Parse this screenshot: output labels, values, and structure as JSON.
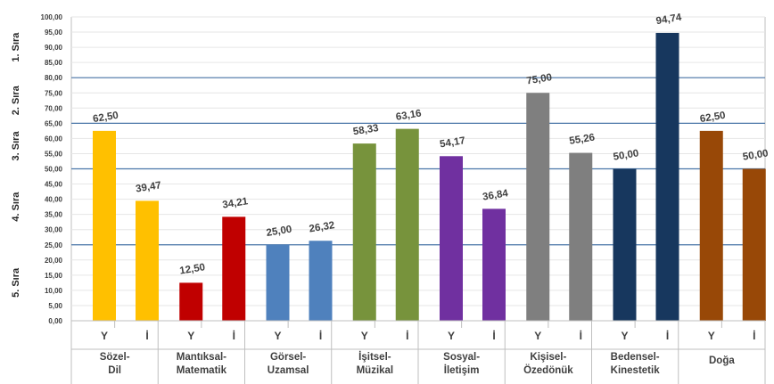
{
  "chart_data": {
    "type": "bar",
    "groups": [
      {
        "label": "Sözel-\nDil",
        "color": "#ffc000"
      },
      {
        "label": "Mantıksal-\nMatematik",
        "color": "#c00000"
      },
      {
        "label": "Görsel-\nUzamsal",
        "color": "#4f81bd"
      },
      {
        "label": "İşitsel-\nMüzikal",
        "color": "#77933c"
      },
      {
        "label": "Sosyal-\nİletişim",
        "color": "#7030a0"
      },
      {
        "label": "Kişisel-\nÖzedönük",
        "color": "#7f7f7f"
      },
      {
        "label": "Bedensel-\nKinestetik",
        "color": "#17375e"
      },
      {
        "label": "Doğa",
        "color": "#984807"
      }
    ],
    "sub_categories": [
      "Y",
      "İ"
    ],
    "values": [
      [
        62.5,
        39.47
      ],
      [
        12.5,
        34.21
      ],
      [
        25.0,
        26.32
      ],
      [
        58.33,
        63.16
      ],
      [
        54.17,
        36.84
      ],
      [
        75.0,
        55.26
      ],
      [
        50.0,
        94.74
      ],
      [
        62.5,
        50.0
      ]
    ],
    "value_labels": [
      [
        "62,50",
        "39,47"
      ],
      [
        "12,50",
        "34,21"
      ],
      [
        "25,00",
        "26,32"
      ],
      [
        "58,33",
        "63,16"
      ],
      [
        "54,17",
        "36,84"
      ],
      [
        "75,00",
        "55,26"
      ],
      [
        "50,00",
        "94,74"
      ],
      [
        "62,50",
        "50,00"
      ]
    ],
    "ylim": [
      0,
      100
    ],
    "yticks": [
      0,
      5,
      10,
      15,
      20,
      25,
      30,
      35,
      40,
      45,
      50,
      55,
      60,
      65,
      70,
      75,
      80,
      85,
      90,
      95,
      100
    ],
    "ytick_labels": [
      "0,00",
      "5,00",
      "10,00",
      "15,00",
      "20,00",
      "25,00",
      "30,00",
      "35,00",
      "40,00",
      "45,00",
      "50,00",
      "55,00",
      "60,00",
      "65,00",
      "70,00",
      "75,00",
      "80,00",
      "85,00",
      "90,00",
      "95,00",
      "100,00"
    ],
    "reference_lines": [
      25,
      50,
      65,
      80
    ],
    "rank_bands": [
      {
        "label": "1. Sıra",
        "from": 80,
        "to": 100
      },
      {
        "label": "2. Sıra",
        "from": 65,
        "to": 80
      },
      {
        "label": "3. Sıra",
        "from": 50,
        "to": 65
      },
      {
        "label": "4. Sıra",
        "from": 25,
        "to": 50
      },
      {
        "label": "5. Sıra",
        "from": 0,
        "to": 25
      }
    ],
    "colors": {
      "reference_line": "#4a76a8",
      "grid": "#e6e6e6",
      "axis_text": "#404040",
      "value_text": "#404040"
    }
  }
}
